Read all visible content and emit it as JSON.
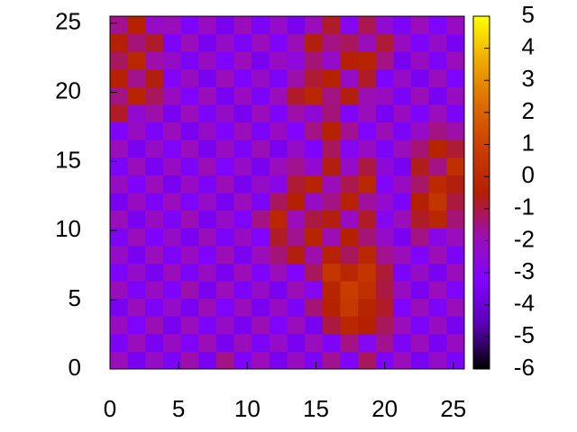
{
  "chart_data": {
    "type": "heatmap",
    "xlim": [
      0,
      25.8
    ],
    "ylim": [
      0,
      25.5
    ],
    "xticks": [
      0,
      5,
      10,
      15,
      20,
      25
    ],
    "yticks": [
      0,
      5,
      10,
      15,
      20,
      25
    ],
    "cblim": [
      -6,
      5
    ],
    "cbticks": [
      -6,
      -5,
      -4,
      -3,
      -2,
      -1,
      0,
      1,
      2,
      3,
      4,
      5
    ],
    "palette": [
      "#000000",
      "#5a00b4",
      "#8004ff",
      "#9c0eb4",
      "#b42000",
      "#c93e00",
      "#dd6b00",
      "#eeab00",
      "#ffff00"
    ],
    "z": [
      [
        -2,
        -3.5,
        -2.2,
        -3.4,
        -1.8,
        -3.5,
        -1.5,
        -3.3,
        -2,
        -3.5,
        -2.1,
        -3.4,
        -1.6,
        -3.2,
        -1.2,
        -3.3,
        -2,
        -3.5,
        -2.2,
        -3.4
      ],
      [
        -3.4,
        -2,
        -3.5,
        -2.1,
        -3.3,
        -1.9,
        -3.5,
        -2,
        -3.4,
        -2.2,
        -3.5,
        -2,
        -3.3,
        -1.5,
        -3,
        -1.6,
        -3.4,
        -2,
        -3.5,
        -2.1
      ],
      [
        -2.1,
        -3.3,
        -1.9,
        -3.5,
        -2,
        -3.4,
        -2.2,
        -3.5,
        -1.9,
        -3.3,
        -2,
        -3.5,
        -1,
        -0.2,
        -0.5,
        -1.2,
        -2,
        -3.4,
        -2.1,
        -3.5
      ],
      [
        -3.5,
        -2,
        -3.4,
        -2.2,
        -3.5,
        -1.9,
        -3.3,
        -2,
        -3.5,
        -2.1,
        -3.4,
        -1.4,
        -0.4,
        0.6,
        -0.3,
        -0.8,
        -3.3,
        -2,
        -3.4,
        -2
      ],
      [
        -2,
        -3.4,
        -2.1,
        -3.3,
        -1.8,
        -3.5,
        -2,
        -3.4,
        -2.2,
        -3.5,
        -1.9,
        -3,
        -0.3,
        0.8,
        0.2,
        -1,
        -2.1,
        -3.5,
        -2,
        -3.3
      ],
      [
        -3.3,
        -2.2,
        -3.5,
        -2,
        -3.4,
        -2.1,
        -3.5,
        -1.9,
        -3.3,
        -2,
        -3.2,
        -1.2,
        0.5,
        -0.2,
        0.4,
        -0.9,
        -3.4,
        -2.2,
        -3.5,
        -2
      ],
      [
        -2.2,
        -3.5,
        -2,
        -3.4,
        -2.1,
        -3.3,
        -1.9,
        -3.5,
        -2,
        -1.4,
        -0.6,
        -1.8,
        -0.4,
        -1.2,
        -0.2,
        -1.6,
        -2,
        -3.3,
        -1.9,
        -3.4
      ],
      [
        -3.4,
        -2,
        -3.3,
        -2.2,
        -3.5,
        -2,
        -3.4,
        -2.1,
        -3.2,
        -0.8,
        -1.6,
        -0.3,
        -1.9,
        -0.5,
        -1.4,
        -2.2,
        -3.5,
        -1.5,
        -2.8,
        -2
      ],
      [
        -2,
        -3.5,
        -2.1,
        -3.4,
        -1.9,
        -3.5,
        -2.2,
        -3.3,
        -1.5,
        -0.2,
        -2,
        -1,
        -0.6,
        -2.1,
        -0.8,
        -3,
        -2,
        -0.8,
        -0.2,
        -1.4
      ],
      [
        -3.5,
        -2.1,
        -3.4,
        -2,
        -3.3,
        -2.2,
        -3.5,
        -2,
        -3.4,
        -1.2,
        -0.5,
        -2.2,
        -1.5,
        -0.4,
        -1.7,
        -2.3,
        -3.4,
        -0.5,
        0.4,
        -1
      ],
      [
        -2.1,
        -3.3,
        -2,
        -3.5,
        -2.1,
        -3.4,
        -1.9,
        -3.5,
        -2.2,
        -2.8,
        -0.9,
        -0.3,
        -2,
        -1.1,
        -0.2,
        -3.1,
        -2.1,
        -1.3,
        -0.1,
        -0.6
      ],
      [
        -3.4,
        -2,
        -3.5,
        -2.1,
        -3.4,
        -1.9,
        -3.3,
        -2.2,
        -3.5,
        -2,
        -1.6,
        -2.4,
        -0.6,
        -2.2,
        -1,
        -2.5,
        -3.5,
        -0.7,
        -1.5,
        0.2
      ],
      [
        -2,
        -3.5,
        -2.2,
        -3.3,
        -2,
        -3.5,
        -2.1,
        -3.4,
        -1.9,
        -3.5,
        -2.2,
        -3.3,
        -1.2,
        -3,
        -2.1,
        -3.4,
        -2,
        -1.4,
        -0.3,
        -0.9
      ],
      [
        -3.3,
        -2.1,
        -3.4,
        -2,
        -3.5,
        -2.2,
        -3.3,
        -2,
        -3.4,
        -2.1,
        -3.2,
        -1.5,
        -0.4,
        -1.6,
        -3.3,
        -2,
        -3.4,
        -2.2,
        -1.5,
        -1.8
      ],
      [
        -0.8,
        -2.4,
        -1.8,
        -3.5,
        -2,
        -3.4,
        -2.2,
        -3.5,
        -2,
        -3.3,
        -1.8,
        -2.5,
        -1.4,
        -3.2,
        -2,
        -3.5,
        -2.1,
        -3.3,
        -2,
        -3.4
      ],
      [
        -1.5,
        -0.3,
        -1.2,
        -2.1,
        -3.3,
        -2,
        -3.5,
        -2.1,
        -3.4,
        -2,
        -0.8,
        -0.2,
        -1.5,
        -0.6,
        -1.9,
        -2.1,
        -3.4,
        -2,
        -3.5,
        -2.1
      ],
      [
        -0.4,
        -1.6,
        -0.6,
        -3.1,
        -2.1,
        -3.5,
        -2,
        -3.3,
        -2.2,
        -3.4,
        -1.8,
        -0.9,
        -0.4,
        -2.2,
        -0.8,
        -3.3,
        -2.2,
        -3.5,
        -2,
        -3.3
      ],
      [
        -1.2,
        -0.2,
        -1.8,
        -2.2,
        -3.4,
        -2.1,
        -3.3,
        -2,
        -3.5,
        -2.1,
        -2.6,
        -1.4,
        -2.3,
        -0.5,
        -0.3,
        -1.5,
        -3.5,
        -2.1,
        -3.4,
        -2
      ],
      [
        -0.5,
        -1.4,
        -0.8,
        -3.4,
        -2,
        -3.5,
        -2.2,
        -3.4,
        -2,
        -3.3,
        -1.9,
        -0.6,
        -1.5,
        -1.2,
        -2,
        -0.9,
        -2.1,
        -3.3,
        -2.2,
        -3.5
      ],
      [
        -1.6,
        -0.4,
        -2.2,
        -2,
        -3.3,
        -2.1,
        -3.5,
        -2,
        -3.4,
        -2.2,
        -3.5,
        -2,
        -0.8,
        -3,
        -1.1,
        -2.4,
        -3.4,
        -2,
        -3.3,
        -2.1
      ]
    ]
  }
}
